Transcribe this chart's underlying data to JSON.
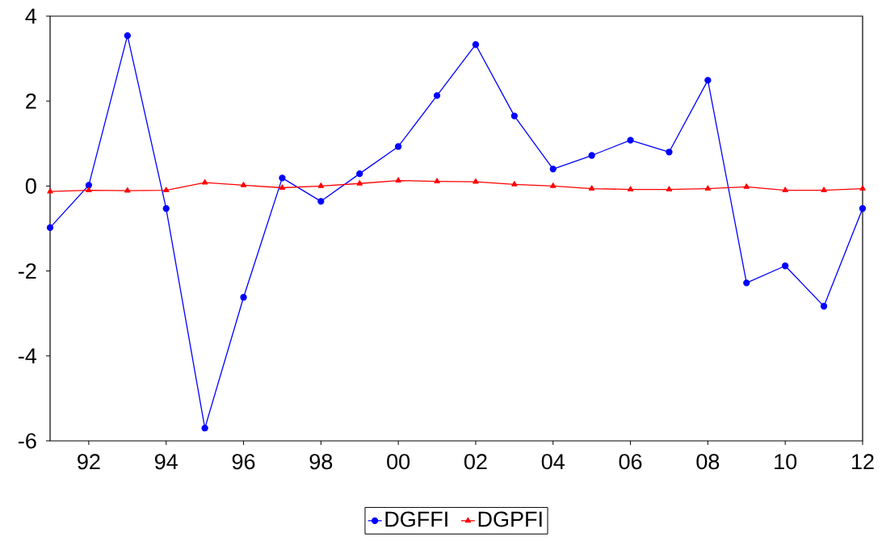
{
  "chart_data": {
    "type": "line",
    "x": [
      1991,
      1992,
      1993,
      1994,
      1995,
      1996,
      1997,
      1998,
      1999,
      2000,
      2001,
      2002,
      2003,
      2004,
      2005,
      2006,
      2007,
      2008,
      2009,
      2010,
      2011,
      2012
    ],
    "series": [
      {
        "name": "DGFFI",
        "color": "#0000ff",
        "marker": "circle",
        "values": [
          -0.98,
          0.02,
          3.54,
          -0.53,
          -5.7,
          -2.62,
          0.19,
          -0.36,
          0.29,
          0.93,
          2.13,
          3.33,
          1.65,
          0.4,
          0.72,
          1.08,
          0.8,
          2.49,
          -2.28,
          -1.88,
          -2.83,
          -0.53
        ]
      },
      {
        "name": "DGPFI",
        "color": "#ff0000",
        "marker": "triangle",
        "values": [
          -0.13,
          -0.1,
          -0.11,
          -0.1,
          0.08,
          0.02,
          -0.04,
          0.0,
          0.06,
          0.13,
          0.11,
          0.1,
          0.04,
          0.0,
          -0.06,
          -0.08,
          -0.08,
          -0.06,
          -0.02,
          -0.1,
          -0.1,
          -0.06
        ]
      }
    ],
    "xlim": [
      1991,
      2012
    ],
    "xticks": [
      {
        "value": 1992,
        "label": "92"
      },
      {
        "value": 1994,
        "label": "94"
      },
      {
        "value": 1996,
        "label": "96"
      },
      {
        "value": 1998,
        "label": "98"
      },
      {
        "value": 2000,
        "label": "00"
      },
      {
        "value": 2002,
        "label": "02"
      },
      {
        "value": 2004,
        "label": "04"
      },
      {
        "value": 2006,
        "label": "06"
      },
      {
        "value": 2008,
        "label": "08"
      },
      {
        "value": 2010,
        "label": "10"
      },
      {
        "value": 2012,
        "label": "12"
      }
    ],
    "ylim": [
      -6,
      4
    ],
    "yticks": [
      -6,
      -4,
      -2,
      0,
      2,
      4
    ],
    "grid": false,
    "legend": "bottom",
    "line_style": "solid"
  }
}
